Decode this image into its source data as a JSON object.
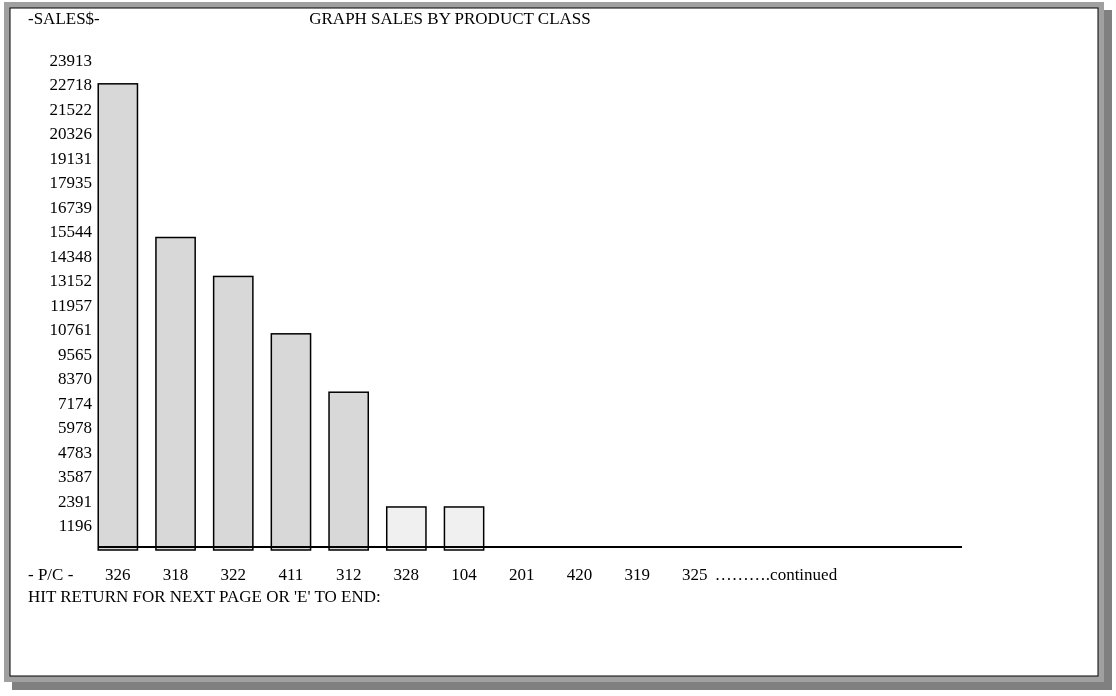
{
  "chart_data": {
    "type": "bar",
    "title": "GRAPH SALES BY PRODUCT CLASS",
    "ylabel": "-SALES$-",
    "xlabel": "- P/C -",
    "categories": [
      "326",
      "318",
      "322",
      "411",
      "312",
      "328",
      "104",
      "201",
      "420",
      "319",
      "325"
    ],
    "values": [
      22750,
      15250,
      13350,
      10550,
      7700,
      2100,
      2100,
      null,
      null,
      null,
      null
    ],
    "colors": [
      "#d8d8d8",
      "#d8d8d8",
      "#d8d8d8",
      "#d8d8d8",
      "#d8d8d8",
      "#f0f0f0",
      "#f0f0f0",
      "#d8d8d8",
      "#d8d8d8",
      "#d8d8d8",
      "#d8d8d8"
    ],
    "ylim": [
      0,
      23913
    ],
    "yticks": [
      1196,
      2391,
      3587,
      4783,
      5978,
      7174,
      8370,
      9565,
      10761,
      11957,
      13152,
      14348,
      15544,
      16739,
      17935,
      19131,
      20326,
      21522,
      22718,
      23913
    ],
    "grid": false,
    "annotations": [
      "……….continued",
      "HIT RETURN FOR NEXT PAGE OR 'E' TO END:"
    ]
  }
}
